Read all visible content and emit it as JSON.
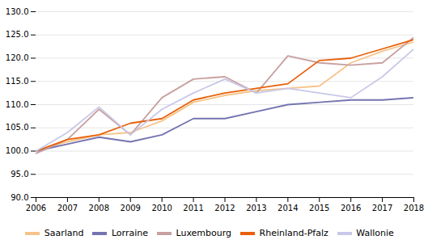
{
  "chart_data": {
    "type": "line",
    "x": [
      2006,
      2007,
      2008,
      2009,
      2010,
      2011,
      2012,
      2013,
      2014,
      2015,
      2016,
      2017,
      2018
    ],
    "series": [
      {
        "name": "Saarland",
        "color": "#f5c48a",
        "values": [
          100.0,
          102.0,
          103.5,
          104.0,
          106.5,
          110.5,
          112.0,
          113.0,
          113.5,
          114.0,
          119.0,
          121.5,
          123.5
        ]
      },
      {
        "name": "Lorraine",
        "color": "#7474b0",
        "values": [
          100.0,
          101.5,
          103.0,
          102.0,
          103.5,
          107.0,
          107.0,
          108.5,
          110.0,
          110.5,
          111.0,
          111.0,
          111.5
        ]
      },
      {
        "name": "Luxembourg",
        "color": "#c8a0a0",
        "values": [
          99.5,
          102.5,
          109.0,
          103.5,
          111.5,
          115.5,
          116.0,
          112.5,
          120.5,
          119.0,
          118.5,
          119.0,
          124.5
        ]
      },
      {
        "name": "Rheinland-Pfalz",
        "color": "#e8600a",
        "values": [
          100.0,
          102.5,
          103.5,
          106.0,
          107.0,
          111.0,
          112.5,
          113.5,
          114.5,
          119.5,
          120.0,
          122.0,
          124.0
        ]
      },
      {
        "name": "Wallonie",
        "color": "#c8c8e8",
        "values": [
          100.0,
          104.0,
          109.5,
          103.5,
          109.0,
          112.5,
          115.5,
          112.5,
          113.5,
          112.5,
          111.5,
          116.0,
          122.0
        ]
      }
    ],
    "xlim": [
      2006,
      2018
    ],
    "xticks": [
      2006,
      2007,
      2008,
      2009,
      2010,
      2011,
      2012,
      2013,
      2014,
      2015,
      2016,
      2017,
      2018
    ],
    "ylim": [
      90.0,
      130.0
    ],
    "yticks": [
      {
        "value": 90.0,
        "label": "90.0"
      },
      {
        "value": 95.0,
        "label": "95.0"
      },
      {
        "value": 100.0,
        "label": "100.0"
      },
      {
        "value": 105.0,
        "label": "105.0"
      },
      {
        "value": 110.0,
        "label": "110.0"
      },
      {
        "value": 115.0,
        "label": "115.0"
      },
      {
        "value": 120.0,
        "label": "120.0"
      },
      {
        "value": 125.0,
        "label": "125.0"
      },
      {
        "value": 130.0,
        "label": "130.0"
      }
    ],
    "grid": true,
    "legend": "bottom"
  }
}
